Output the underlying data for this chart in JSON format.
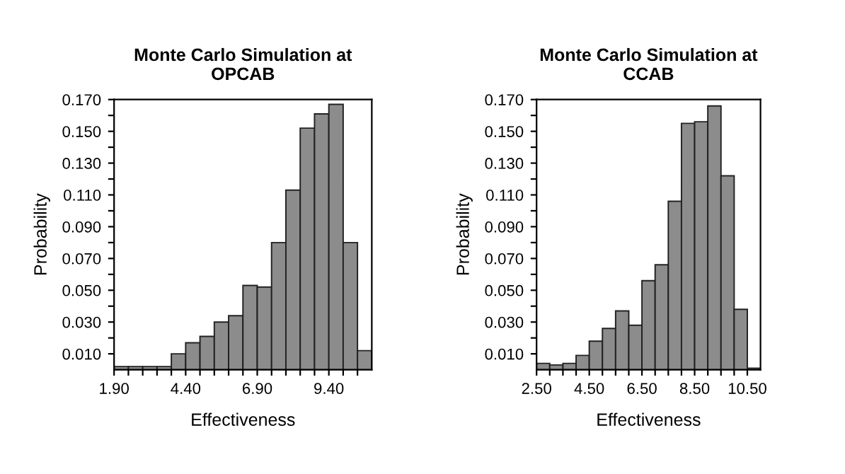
{
  "chart_data": [
    {
      "type": "histogram",
      "title": "Monte Carlo Simulation at\nOPCAB",
      "xlabel": "Effectiveness",
      "ylabel": "Probability",
      "color": "#8c8c8c",
      "bins": [
        1.9,
        2.4,
        2.9,
        3.4,
        3.9,
        4.4,
        4.9,
        5.4,
        5.9,
        6.4,
        6.9,
        7.4,
        7.9,
        8.4,
        8.9,
        9.4,
        9.9,
        10.4,
        10.9
      ],
      "values": [
        0.002,
        0.002,
        0.002,
        0.002,
        0.01,
        0.017,
        0.021,
        0.03,
        0.034,
        0.053,
        0.052,
        0.08,
        0.113,
        0.152,
        0.161,
        0.167,
        0.08,
        0.012
      ],
      "xlim": [
        1.9,
        10.9
      ],
      "ylim": [
        0,
        0.17
      ],
      "xticks": [
        {
          "value": 1.9,
          "label": "1.90"
        },
        {
          "value": 2.4,
          "label": null
        },
        {
          "value": 2.9,
          "label": null
        },
        {
          "value": 3.4,
          "label": null
        },
        {
          "value": 3.9,
          "label": null
        },
        {
          "value": 4.4,
          "label": "4.40"
        },
        {
          "value": 4.9,
          "label": null
        },
        {
          "value": 5.4,
          "label": null
        },
        {
          "value": 5.9,
          "label": null
        },
        {
          "value": 6.4,
          "label": null
        },
        {
          "value": 6.9,
          "label": "6.90"
        },
        {
          "value": 7.4,
          "label": null
        },
        {
          "value": 7.9,
          "label": null
        },
        {
          "value": 8.4,
          "label": null
        },
        {
          "value": 8.9,
          "label": null
        },
        {
          "value": 9.4,
          "label": "9.40"
        },
        {
          "value": 9.9,
          "label": null
        },
        {
          "value": 10.4,
          "label": null
        }
      ],
      "yticks": [
        {
          "value": 0.01,
          "label": "0.010"
        },
        {
          "value": 0.02,
          "label": null
        },
        {
          "value": 0.03,
          "label": "0.030"
        },
        {
          "value": 0.04,
          "label": null
        },
        {
          "value": 0.05,
          "label": "0.050"
        },
        {
          "value": 0.06,
          "label": null
        },
        {
          "value": 0.07,
          "label": "0.070"
        },
        {
          "value": 0.08,
          "label": null
        },
        {
          "value": 0.09,
          "label": "0.090"
        },
        {
          "value": 0.1,
          "label": null
        },
        {
          "value": 0.11,
          "label": "0.110"
        },
        {
          "value": 0.12,
          "label": null
        },
        {
          "value": 0.13,
          "label": "0.130"
        },
        {
          "value": 0.14,
          "label": null
        },
        {
          "value": 0.15,
          "label": "0.150"
        },
        {
          "value": 0.16,
          "label": null
        },
        {
          "value": 0.17,
          "label": "0.170"
        }
      ]
    },
    {
      "type": "histogram",
      "title": "Monte Carlo Simulation at\nCCAB",
      "xlabel": "Effectiveness",
      "ylabel": "Probability",
      "color": "#8c8c8c",
      "bins": [
        2.5,
        3.0,
        3.5,
        4.0,
        4.5,
        5.0,
        5.5,
        6.0,
        6.5,
        7.0,
        7.5,
        8.0,
        8.5,
        9.0,
        9.5,
        10.0,
        10.5,
        11.0
      ],
      "values": [
        0.004,
        0.003,
        0.004,
        0.009,
        0.018,
        0.026,
        0.037,
        0.028,
        0.056,
        0.066,
        0.106,
        0.155,
        0.156,
        0.166,
        0.122,
        0.038,
        0.001
      ],
      "xlim": [
        2.5,
        11.0
      ],
      "ylim": [
        0,
        0.17
      ],
      "xticks": [
        {
          "value": 2.5,
          "label": "2.50"
        },
        {
          "value": 3.0,
          "label": null
        },
        {
          "value": 3.5,
          "label": null
        },
        {
          "value": 4.0,
          "label": null
        },
        {
          "value": 4.5,
          "label": "4.50"
        },
        {
          "value": 5.0,
          "label": null
        },
        {
          "value": 5.5,
          "label": null
        },
        {
          "value": 6.0,
          "label": null
        },
        {
          "value": 6.5,
          "label": "6.50"
        },
        {
          "value": 7.0,
          "label": null
        },
        {
          "value": 7.5,
          "label": null
        },
        {
          "value": 8.0,
          "label": null
        },
        {
          "value": 8.5,
          "label": "8.50"
        },
        {
          "value": 9.0,
          "label": null
        },
        {
          "value": 9.5,
          "label": null
        },
        {
          "value": 10.0,
          "label": null
        },
        {
          "value": 10.5,
          "label": "10.50"
        }
      ],
      "yticks": [
        {
          "value": 0.01,
          "label": "0.010"
        },
        {
          "value": 0.02,
          "label": null
        },
        {
          "value": 0.03,
          "label": "0.030"
        },
        {
          "value": 0.04,
          "label": null
        },
        {
          "value": 0.05,
          "label": "0.050"
        },
        {
          "value": 0.06,
          "label": null
        },
        {
          "value": 0.07,
          "label": "0.070"
        },
        {
          "value": 0.08,
          "label": null
        },
        {
          "value": 0.09,
          "label": "0.090"
        },
        {
          "value": 0.1,
          "label": null
        },
        {
          "value": 0.11,
          "label": "0.110"
        },
        {
          "value": 0.12,
          "label": null
        },
        {
          "value": 0.13,
          "label": "0.130"
        },
        {
          "value": 0.14,
          "label": null
        },
        {
          "value": 0.15,
          "label": "0.150"
        },
        {
          "value": 0.16,
          "label": null
        },
        {
          "value": 0.17,
          "label": "0.170"
        }
      ]
    }
  ]
}
